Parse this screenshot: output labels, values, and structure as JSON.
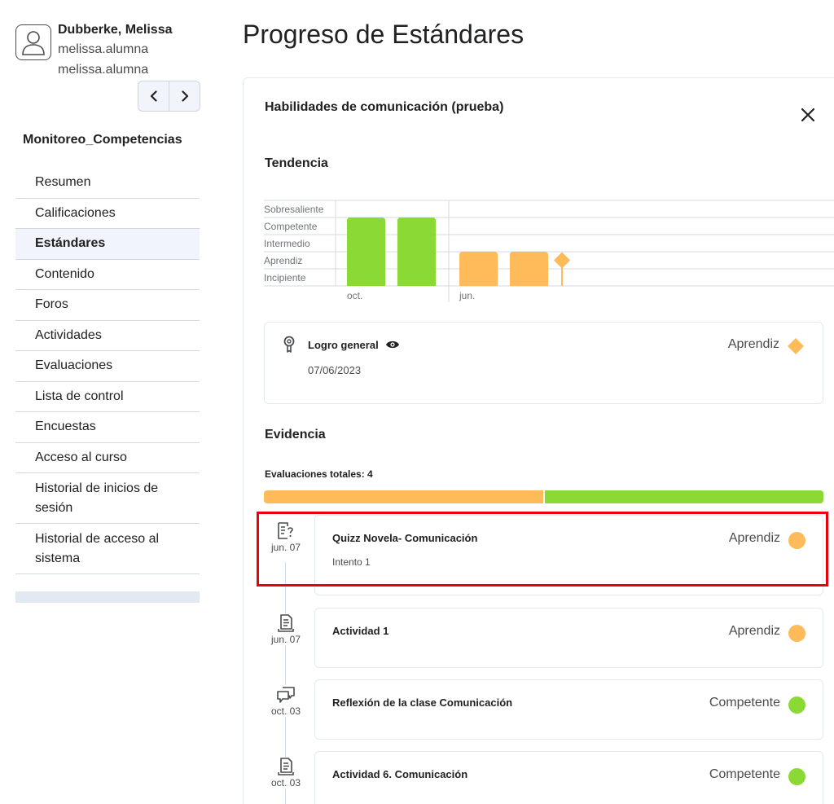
{
  "user": {
    "name": "Dubberke, Melissa",
    "line1": "melissa.alumna",
    "line2": "melissa.alumna"
  },
  "course": {
    "title": "Monitoreo_Competencias"
  },
  "nav": {
    "items": [
      {
        "label": "Resumen"
      },
      {
        "label": "Calificaciones"
      },
      {
        "label": "Estándares"
      },
      {
        "label": "Contenido"
      },
      {
        "label": "Foros"
      },
      {
        "label": "Actividades"
      },
      {
        "label": "Evaluaciones"
      },
      {
        "label": "Lista de control"
      },
      {
        "label": "Encuestas"
      },
      {
        "label": "Acceso al curso"
      },
      {
        "label": "Historial de inicios de sesión"
      },
      {
        "label": "Historial de acceso al sistema"
      }
    ],
    "active_index": 2
  },
  "page": {
    "title": "Progreso de Estándares"
  },
  "panel": {
    "title": "Habilidades de comunicación (prueba)",
    "trend_title": "Tendencia",
    "evidence_title": "Evidencia"
  },
  "chart_data": {
    "type": "bar",
    "levels": [
      "Incipiente",
      "Aprendiz",
      "Intermedio",
      "Competente",
      "Sobresaliente"
    ],
    "x_labels": [
      "oct.",
      "jun."
    ],
    "values": [
      {
        "group": "oct.",
        "level": "Competente"
      },
      {
        "group": "oct.",
        "level": "Competente"
      },
      {
        "group": "jun.",
        "level": "Aprendiz"
      },
      {
        "group": "jun.",
        "level": "Aprendiz"
      }
    ],
    "overall_marker": {
      "level": "Aprendiz",
      "shape": "diamond"
    },
    "colors": {
      "Competente": "#8ad934",
      "Aprendiz": "#ffba59"
    },
    "grid": true
  },
  "overall": {
    "label": "Logro general",
    "date": "07/06/2023",
    "level": "Aprendiz",
    "color": "#ffba59"
  },
  "evidence": {
    "total_label": "Evaluaciones totales: 4",
    "distribution": [
      {
        "level": "Aprendiz",
        "count": 2,
        "color": "#ffba59"
      },
      {
        "level": "Competente",
        "count": 2,
        "color": "#8ad934"
      }
    ],
    "items": [
      {
        "date": "jun. 07",
        "icon": "quiz-icon",
        "name": "Quizz Novela- Comunicación",
        "sub": "Intento 1",
        "level": "Aprendiz",
        "color": "#ffba59",
        "highlighted": true
      },
      {
        "date": "jun. 07",
        "icon": "assignment-icon",
        "name": "Actividad 1",
        "sub": "",
        "level": "Aprendiz",
        "color": "#ffba59",
        "highlighted": false
      },
      {
        "date": "oct. 03",
        "icon": "discussion-icon",
        "name": "Reflexión de la clase Comunicación",
        "sub": "",
        "level": "Competente",
        "color": "#8ad934",
        "highlighted": false
      },
      {
        "date": "oct. 03",
        "icon": "assignment-icon",
        "name": "Actividad 6. Comunicación",
        "sub": "",
        "level": "Competente",
        "color": "#8ad934",
        "highlighted": false
      }
    ]
  }
}
